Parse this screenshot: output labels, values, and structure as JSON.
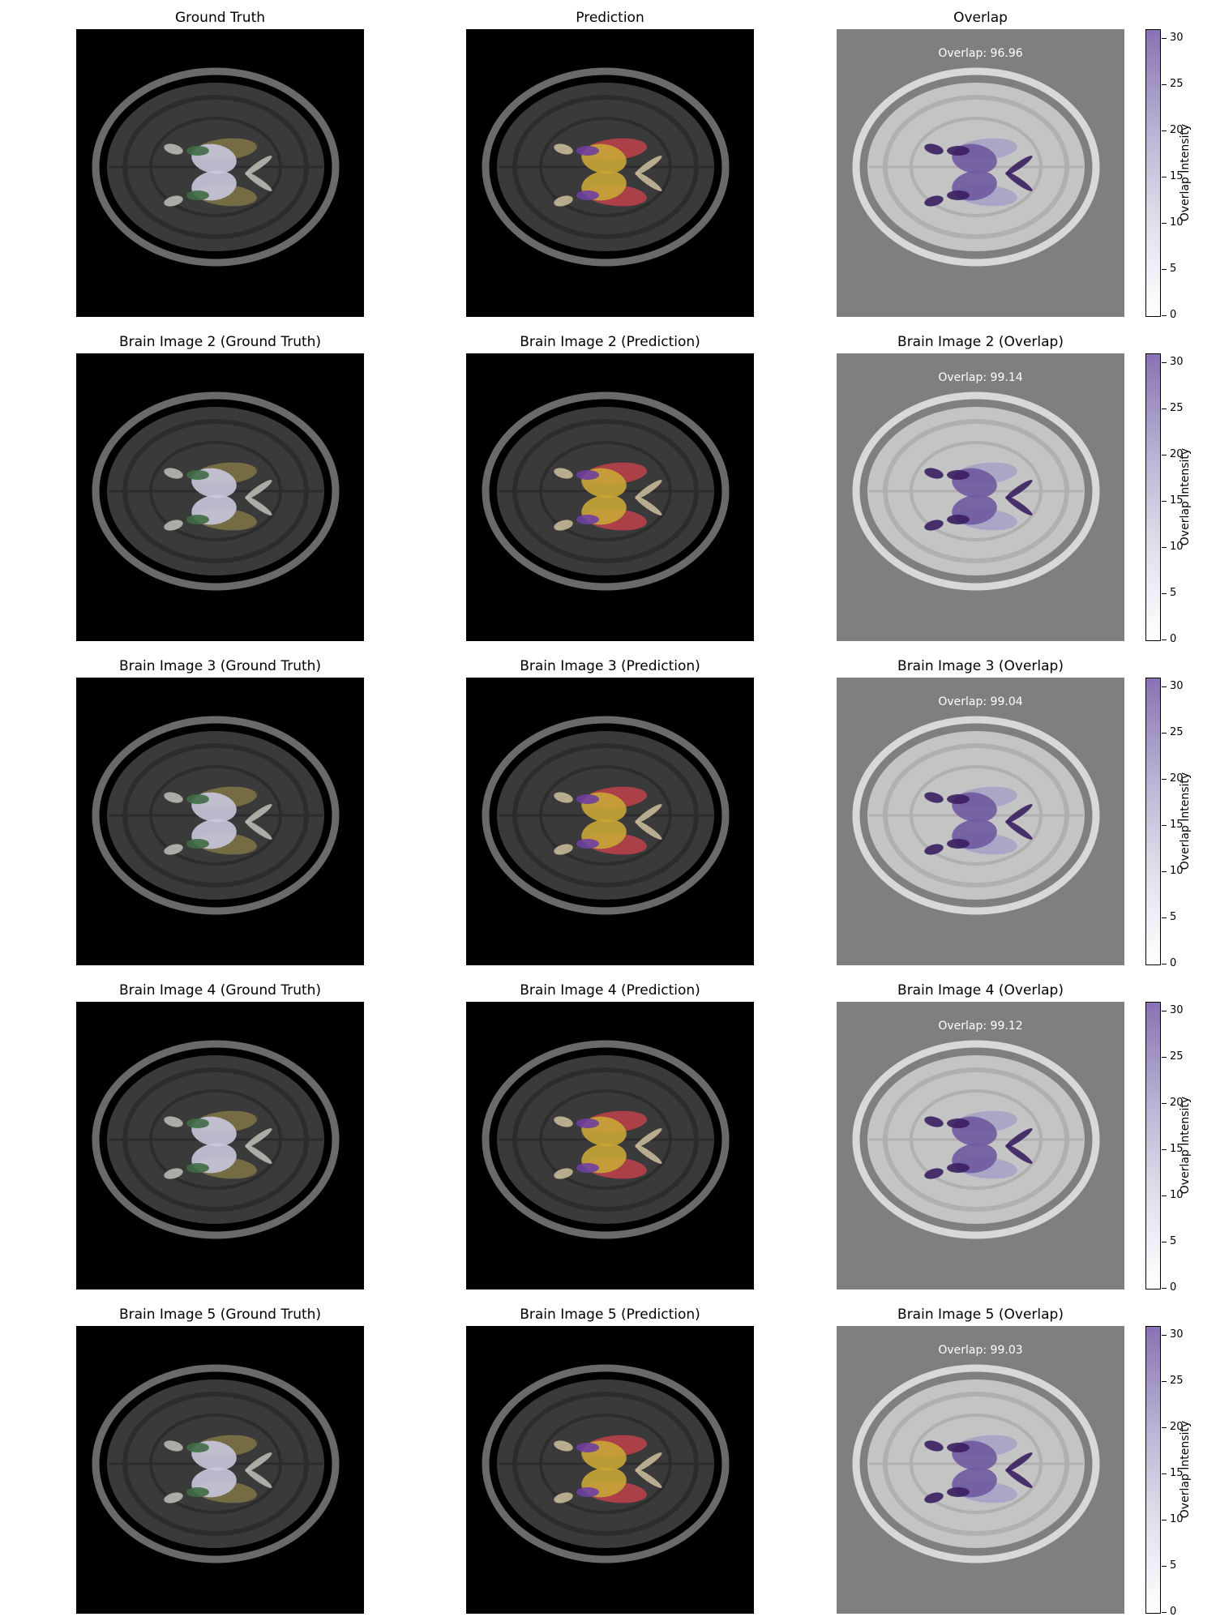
{
  "rows": [
    {
      "gt_title": "Ground Truth",
      "pred_title": "Prediction",
      "overlap_title": "Overlap",
      "overlap_score": "Overlap: 96.96"
    },
    {
      "gt_title": "Brain Image 2 (Ground Truth)",
      "pred_title": "Brain Image 2 (Prediction)",
      "overlap_title": "Brain Image 2 (Overlap)",
      "overlap_score": "Overlap: 99.14"
    },
    {
      "gt_title": "Brain Image 3 (Ground Truth)",
      "pred_title": "Brain Image 3 (Prediction)",
      "overlap_title": "Brain Image 3 (Overlap)",
      "overlap_score": "Overlap: 99.04"
    },
    {
      "gt_title": "Brain Image 4 (Ground Truth)",
      "pred_title": "Brain Image 4 (Prediction)",
      "overlap_title": "Brain Image 4 (Overlap)",
      "overlap_score": "Overlap: 99.12"
    },
    {
      "gt_title": "Brain Image 5 (Ground Truth)",
      "pred_title": "Brain Image 5 (Prediction)",
      "overlap_title": "Brain Image 5 (Overlap)",
      "overlap_score": "Overlap: 99.03"
    }
  ],
  "colorbar": {
    "label": "Overlap Intensity",
    "ticks": [
      "0",
      "5",
      "10",
      "15",
      "20",
      "25",
      "30"
    ],
    "max": 31
  },
  "colors": {
    "gt_green": "#3f6b46",
    "gt_lavender": "#c9c8dc",
    "gt_olive": "#7c7245",
    "gt_light": "#b9b9b4",
    "pred_purple": "#6e3f9e",
    "pred_yellow": "#c8a636",
    "pred_red": "#b8414a",
    "pred_beige": "#c8b898",
    "overlap_dark": "#3a1f61",
    "overlap_mid": "#6e5aa0",
    "overlap_light": "#a9a3c6",
    "overlap_background": "#7f7f7f"
  }
}
